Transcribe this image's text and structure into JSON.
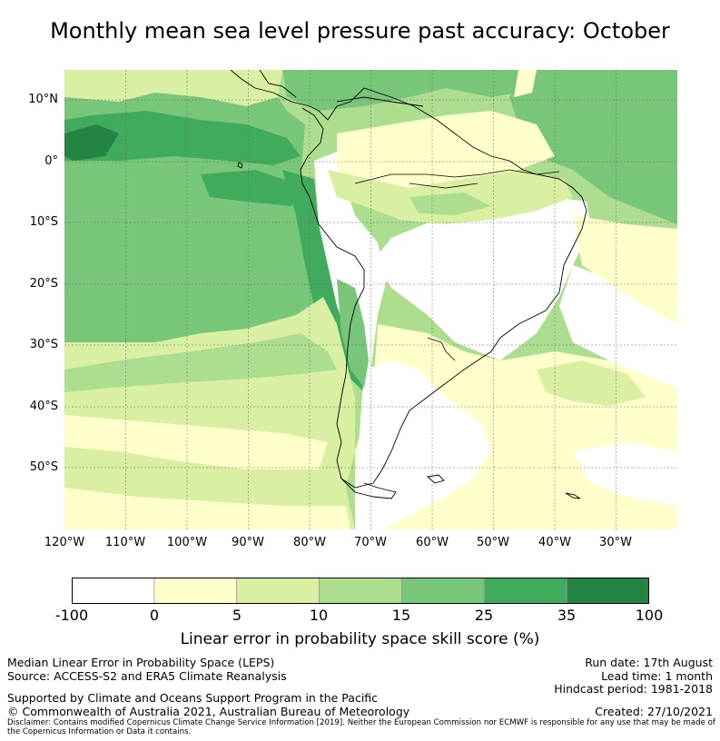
{
  "title": "Monthly mean sea level pressure past accuracy: October",
  "map": {
    "lat_labels": [
      "10°N",
      "0°",
      "10°S",
      "20°S",
      "30°S",
      "40°S",
      "50°S"
    ],
    "lon_labels": [
      "120°W",
      "110°W",
      "100°W",
      "90°W",
      "80°W",
      "70°W",
      "60°W",
      "50°W",
      "40°W",
      "30°W"
    ],
    "extent": {
      "lon_min": -120,
      "lon_max": -20,
      "lat_min": -60,
      "lat_max": 15
    },
    "land_outline_color": "#000000",
    "gridline_color": "#666666"
  },
  "colorbar": {
    "tick_labels": [
      "-100",
      "0",
      "5",
      "10",
      "15",
      "25",
      "35",
      "100"
    ],
    "colors": [
      "#ffffff",
      "#ffffcc",
      "#d9f0a3",
      "#addd8e",
      "#78c679",
      "#41ab5d",
      "#238443"
    ],
    "title": "Linear error in probability space skill score (%)"
  },
  "footer": {
    "left_line1": "Median Linear Error in Probability Space (LEPS)",
    "left_line2": "Source: ACCESS-S2 and ERA5 Climate Reanalysis",
    "left_line3": "Supported by Climate and Oceans Support Program in the Pacific",
    "left_line4": "© Commonwealth of Australia 2021, Australian Bureau of Meteorology",
    "run_date": "Run date: 17th August",
    "lead_time": "Lead time: 1 month",
    "hindcast": "Hindcast period: 1981-2018",
    "created": "Created: 27/10/2021",
    "disclaimer": "Disclaimer: Contains modified Copernicus Climate Change Service Information [2019]. Neither the European Commission nor ECMWF is responsible for any use that may be made of the Copernicus Information or Data it contains."
  }
}
